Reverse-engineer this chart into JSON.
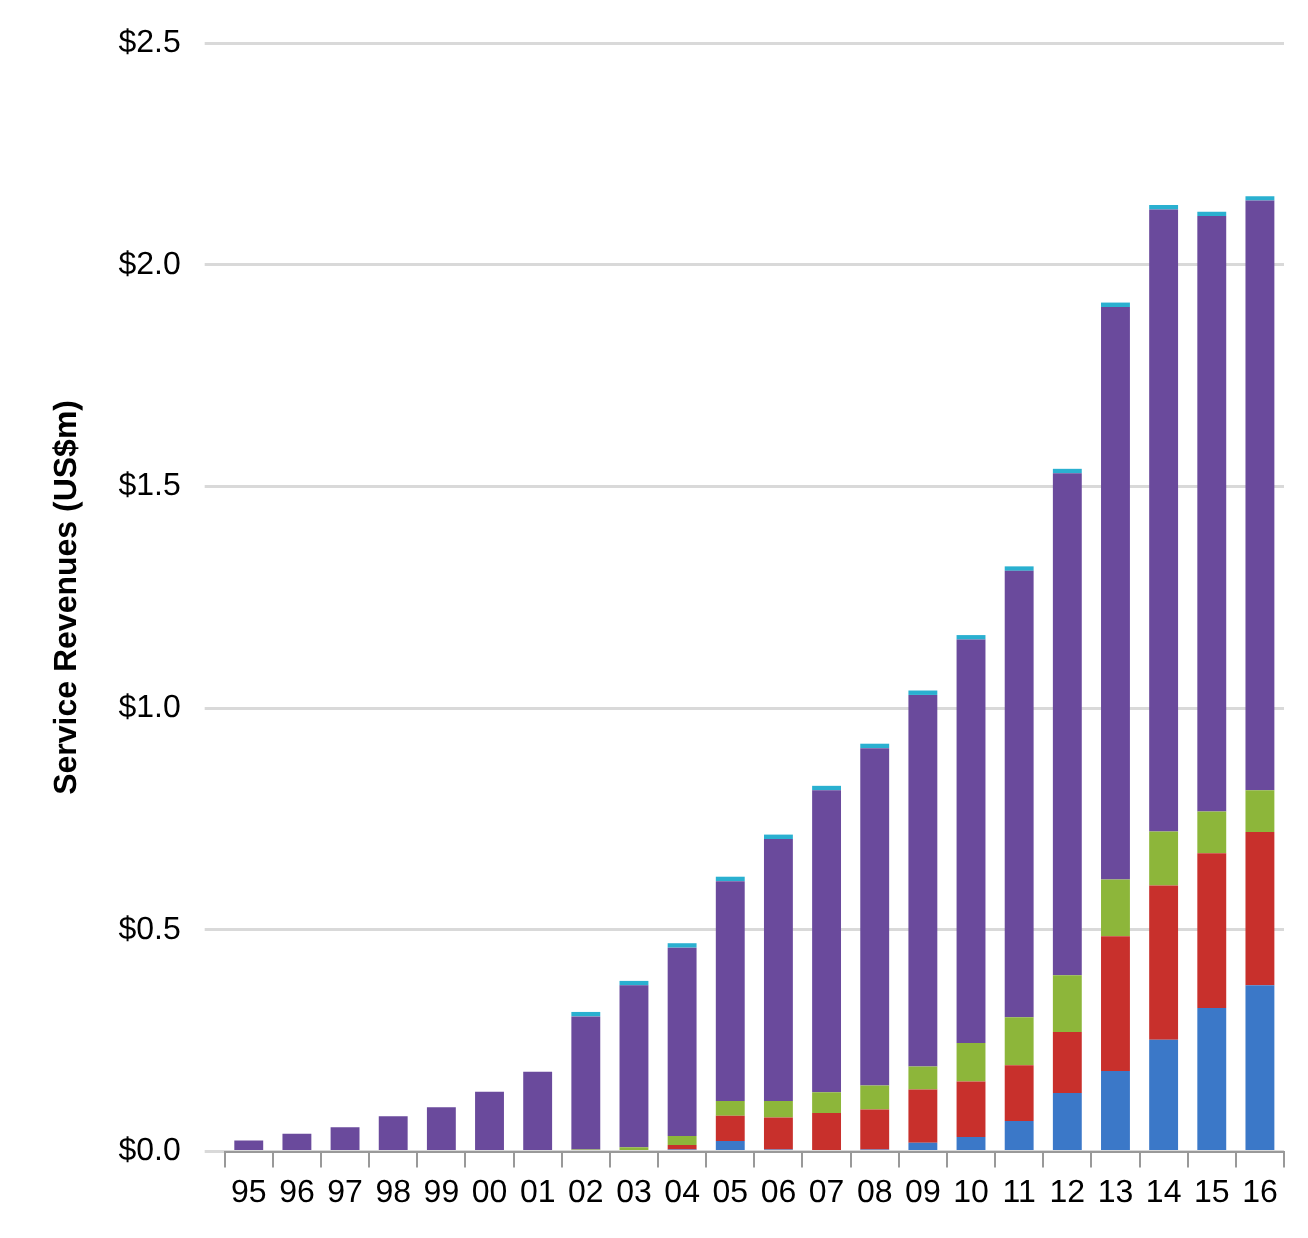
{
  "chart_data": {
    "type": "bar",
    "stacked": true,
    "ylabel": "Service Revenues (US$m)",
    "categories": [
      "95",
      "96",
      "97",
      "98",
      "99",
      "00",
      "01",
      "02",
      "03",
      "04",
      "05",
      "06",
      "07",
      "08",
      "09",
      "10",
      "11",
      "12",
      "13",
      "14",
      "15",
      "16"
    ],
    "series": [
      {
        "color": "#3b78c8",
        "values": [
          0,
          0,
          0,
          0,
          0,
          0,
          0,
          0,
          0,
          0.005,
          0.024,
          0.005,
          0,
          0.005,
          0.02,
          0.033,
          0.069,
          0.132,
          0.182,
          0.252,
          0.324,
          0.375
        ]
      },
      {
        "color": "#c8302c",
        "values": [
          0,
          0,
          0,
          0,
          0,
          0,
          0,
          0,
          0,
          0.01,
          0.057,
          0.072,
          0.087,
          0.09,
          0.12,
          0.125,
          0.126,
          0.138,
          0.304,
          0.348,
          0.349,
          0.346
        ]
      },
      {
        "color": "#8db63a",
        "values": [
          0,
          0,
          0,
          0,
          0,
          0,
          0,
          0.005,
          0.01,
          0.02,
          0.033,
          0.037,
          0.047,
          0.054,
          0.052,
          0.087,
          0.108,
          0.128,
          0.128,
          0.122,
          0.094,
          0.094
        ]
      },
      {
        "color": "#6a4a9c",
        "values": [
          0.025,
          0.04,
          0.055,
          0.08,
          0.1,
          0.135,
          0.18,
          0.3,
          0.365,
          0.425,
          0.496,
          0.591,
          0.681,
          0.761,
          0.838,
          0.91,
          1.007,
          1.132,
          1.291,
          1.403,
          1.343,
          1.33
        ]
      },
      {
        "color": "#2ab0d0",
        "values": [
          0,
          0,
          0,
          0,
          0,
          0,
          0,
          0.01,
          0.01,
          0.01,
          0.01,
          0.01,
          0.01,
          0.01,
          0.01,
          0.01,
          0.01,
          0.01,
          0.01,
          0.01,
          0.01,
          0.01
        ]
      }
    ],
    "ylim": [
      0,
      2.5
    ],
    "yticks": [
      {
        "value": 0,
        "label": "$0.0"
      },
      {
        "value": 0.5,
        "label": "$0.5"
      },
      {
        "value": 1,
        "label": "$1.0"
      },
      {
        "value": 1.5,
        "label": "$1.5"
      },
      {
        "value": 2,
        "label": "$2.0"
      },
      {
        "value": 2.5,
        "label": "$2.5"
      }
    ],
    "grid": "y",
    "legend": false
  }
}
